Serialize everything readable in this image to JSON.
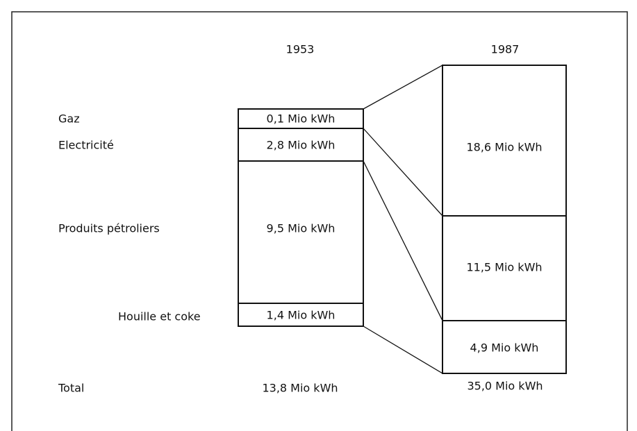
{
  "years": [
    "1953",
    "1987"
  ],
  "rows": [
    "Gaz",
    "Electricité",
    "Produits pétroliers",
    "Houille et coke"
  ],
  "total_label": "Total",
  "columns": [
    {
      "boxes": [
        "0,1 Mio kWh",
        "2,8 Mio kWh",
        "9,5 Mio kWh",
        "1,4 Mio kWh"
      ],
      "total": "13,8 Mio kWh"
    },
    {
      "boxes": [
        "18,6 Mio kWh",
        "11,5 Mio kWh",
        "4,9 Mio kWh"
      ],
      "total": "35,0 Mio kWh"
    }
  ]
}
